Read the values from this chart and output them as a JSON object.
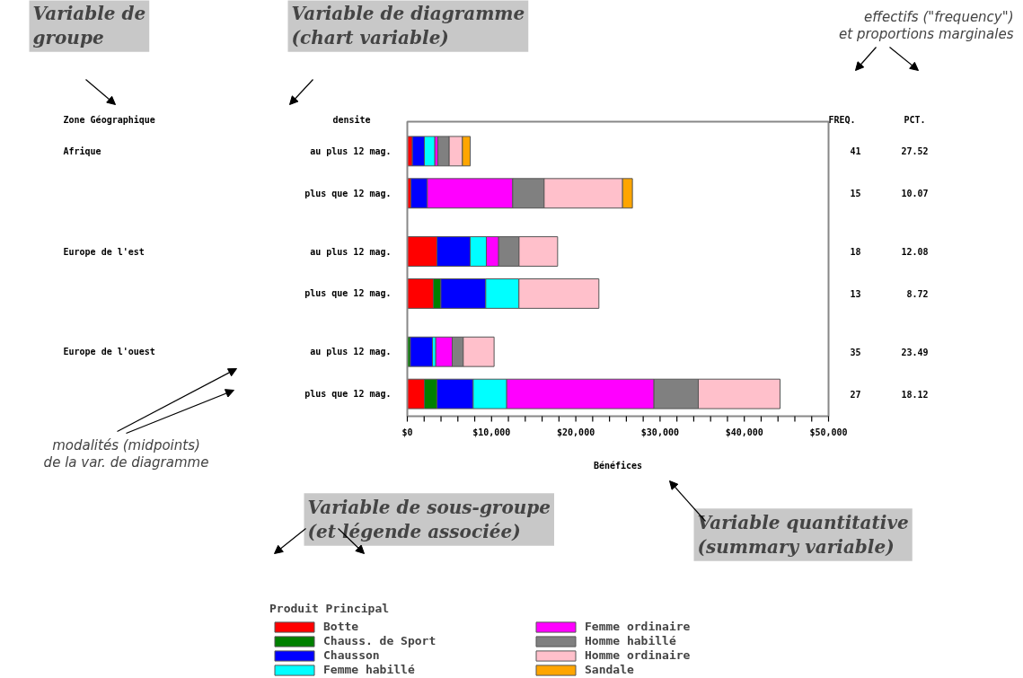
{
  "chart_data": {
    "type": "bar",
    "orientation": "horizontal",
    "stacked": true,
    "categories": [
      "au plus 12 mag.",
      "plus que 12 mag.",
      "au plus 12 mag.",
      "plus que 12 mag.",
      "au plus 12 mag.",
      "plus que 12 mag."
    ],
    "series": [
      {
        "name": "Botte",
        "color": "#ff0000",
        "values": [
          600,
          430,
          3520,
          3090,
          null,
          2030
        ]
      },
      {
        "name": "Chauss. de Sport",
        "color": "#008000",
        "values": [
          null,
          null,
          null,
          890,
          360,
          1490
        ]
      },
      {
        "name": "Chausson",
        "color": "#0000ff",
        "values": [
          1430,
          1950,
          3940,
          5330,
          2630,
          4300
        ]
      },
      {
        "name": "Femme habillé",
        "color": "#00ffff",
        "values": [
          1240,
          null,
          1920,
          3940,
          390,
          3980
        ]
      },
      {
        "name": "Femme ordinaire",
        "color": "#ff00ff",
        "values": [
          360,
          10130,
          1460,
          null,
          1950,
          17480
        ]
      },
      {
        "name": "Homme habillé",
        "color": "#808080",
        "values": [
          1340,
          3730,
          2420,
          null,
          1310,
          5260
        ]
      },
      {
        "name": "Homme ordinaire",
        "color": "#ffc0cb",
        "values": [
          1570,
          9310,
          4580,
          9490,
          3660,
          9700
        ]
      },
      {
        "name": "Sandale",
        "color": "#ffa500",
        "values": [
          930,
          1170,
          null,
          null,
          null,
          null
        ]
      }
    ],
    "xlim": [
      0,
      50000
    ],
    "xticks": [
      {
        "value": 0,
        "label": "$0"
      },
      {
        "value": 2000,
        "label": null
      },
      {
        "value": 4000,
        "label": null
      },
      {
        "value": 6000,
        "label": null
      },
      {
        "value": 8000,
        "label": null
      },
      {
        "value": 10000,
        "label": "$10,000"
      },
      {
        "value": 12000,
        "label": null
      },
      {
        "value": 14000,
        "label": null
      },
      {
        "value": 16000,
        "label": null
      },
      {
        "value": 18000,
        "label": null
      },
      {
        "value": 20000,
        "label": "$20,000"
      },
      {
        "value": 22000,
        "label": null
      },
      {
        "value": 24000,
        "label": null
      },
      {
        "value": 26000,
        "label": null
      },
      {
        "value": 28000,
        "label": null
      },
      {
        "value": 30000,
        "label": "$30,000"
      },
      {
        "value": 32000,
        "label": null
      },
      {
        "value": 34000,
        "label": null
      },
      {
        "value": 36000,
        "label": null
      },
      {
        "value": 38000,
        "label": null
      },
      {
        "value": 40000,
        "label": "$40,000"
      },
      {
        "value": 42000,
        "label": null
      },
      {
        "value": 44000,
        "label": null
      },
      {
        "value": 46000,
        "label": null
      },
      {
        "value": 48000,
        "label": null
      },
      {
        "value": 50000,
        "label": "$50,000"
      }
    ],
    "xlabel": "Bénéfices",
    "ylabel": "densite",
    "legend_title": "Produit Principal",
    "legend": "bottom",
    "grid": false,
    "annotations": [
      "Zone Géographique",
      "Afrique",
      "Europe de l'est",
      "Europe de l'ouest",
      "FREQ.",
      "PCT.",
      "41",
      "27.52",
      "15",
      "10.07",
      "18",
      "12.08",
      "13",
      "8.72",
      "35",
      "23.49",
      "27",
      "18.12",
      "Variable de\ngroupe",
      "Variable de diagramme\n(chart variable)",
      "effectifs (\"frequency\")\net proportions marginales",
      "modalités (midpoints)\nde la var. de diagramme",
      "Variable de sous-groupe\n (et légende associée)",
      "Variable quantitative\n(summary variable)"
    ]
  }
}
